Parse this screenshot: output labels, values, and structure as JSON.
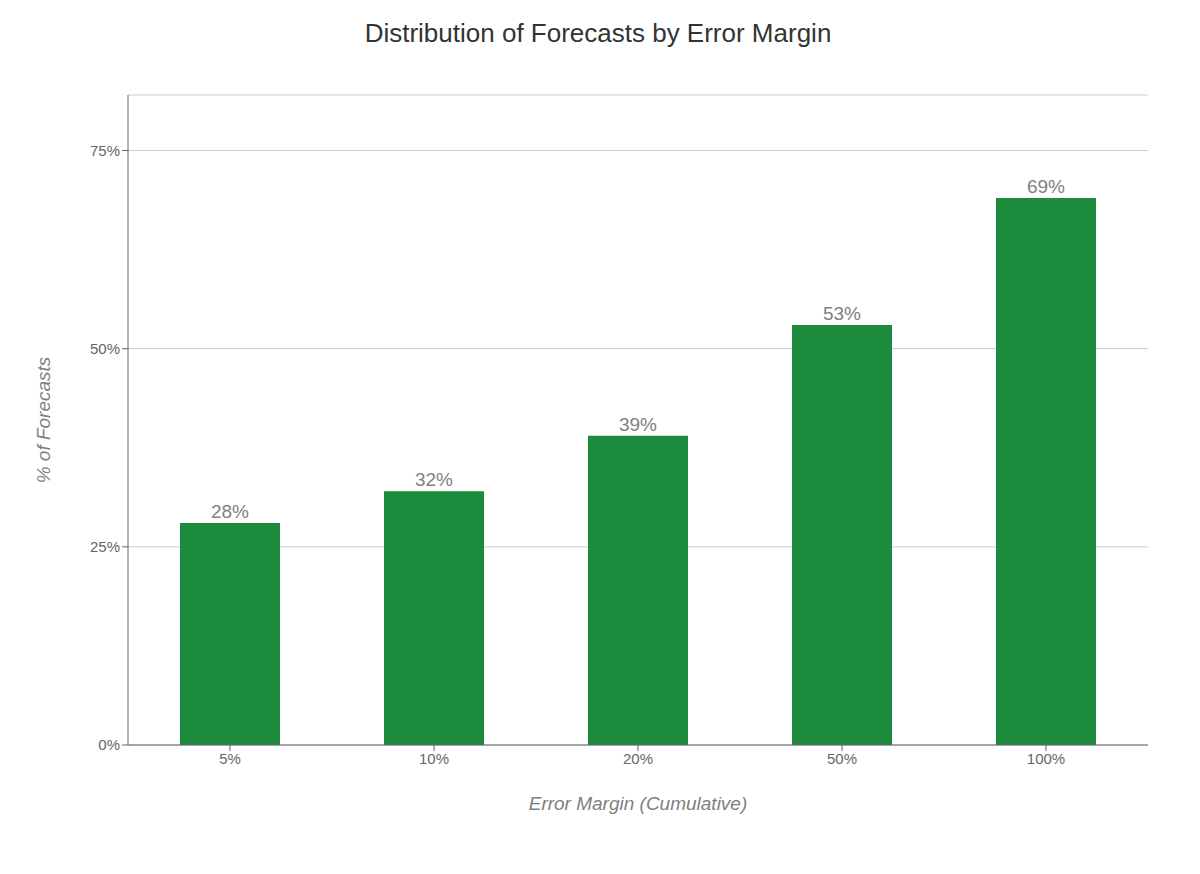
{
  "chart_data": {
    "type": "bar",
    "title": "Distribution of Forecasts by Error Margin",
    "xlabel": "Error Margin (Cumulative)",
    "ylabel": "% of Forecasts",
    "categories": [
      "5%",
      "10%",
      "20%",
      "50%",
      "100%"
    ],
    "values": [
      28,
      32,
      39,
      53,
      69
    ],
    "value_labels": [
      "28%",
      "32%",
      "39%",
      "53%",
      "69%"
    ],
    "data_labels": true,
    "color": "#1c8c3c",
    "ylim": [
      0,
      82
    ],
    "yticks": [
      {
        "value": 0,
        "label": "0%"
      },
      {
        "value": 25,
        "label": "25%"
      },
      {
        "value": 50,
        "label": "50%"
      },
      {
        "value": 75,
        "label": "75%"
      }
    ],
    "grid": true
  }
}
